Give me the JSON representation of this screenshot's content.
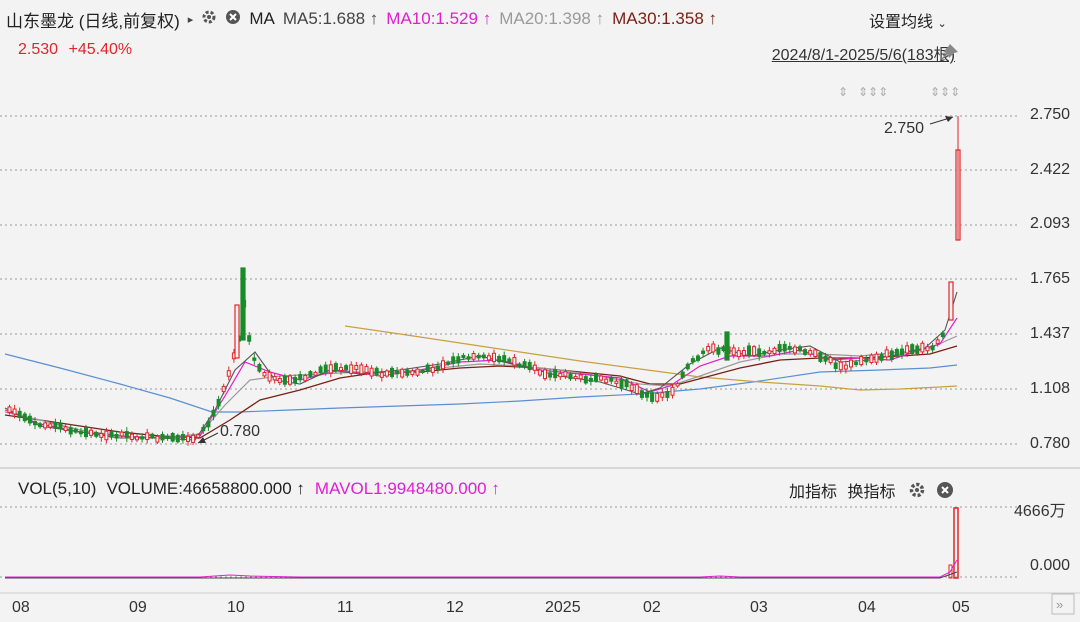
{
  "header": {
    "stock_title": "山东墨龙 (日线,前复权)",
    "play_icon": "▸",
    "ma_label": "MA",
    "ma5": "MA5:1.688",
    "ma10": "MA10:1.529",
    "ma20": "MA20:1.398",
    "ma30": "MA30:1.358",
    "up_arrow": "↑",
    "settings_label": "设置均线",
    "price": "2.530",
    "change": "+45.40%",
    "date_range": "2024/8/1-2025/5/6(183根)"
  },
  "colors": {
    "ma5": "#555555",
    "ma10": "#e020d0",
    "ma20": "#9a9a9a",
    "ma30": "#7a1f14",
    "up": "#e0252b",
    "down": "#1a8a2a",
    "blue_line": "#5b8fd0",
    "gold_line": "#c8a040"
  },
  "price_axis": {
    "ticks": [
      "2.750",
      "2.422",
      "2.093",
      "1.765",
      "1.437",
      "1.108",
      "0.780"
    ],
    "high_label": "2.750",
    "low_label": "0.780"
  },
  "volume": {
    "header_label": "VOL(5,10)",
    "volume_value": "VOLUME:46658800.000",
    "mavol_value": "MAVOL1:9948480.000",
    "add_indicator": "加指标",
    "switch_indicator": "换指标",
    "axis_ticks": [
      "4666万",
      "0.000"
    ]
  },
  "time_axis": {
    "labels": [
      "08",
      "09",
      "10",
      "11",
      "12",
      "2025",
      "02",
      "03",
      "04",
      "05"
    ]
  },
  "chart_data": {
    "type": "candlestick",
    "ylim": [
      0.78,
      2.75
    ],
    "high": 2.75,
    "low": 0.78,
    "last_close": 2.53,
    "x_labels": [
      "08",
      "09",
      "10",
      "11",
      "12",
      "2025",
      "02",
      "03",
      "04",
      "05"
    ],
    "y_ticks": [
      2.75,
      2.422,
      2.093,
      1.765,
      1.437,
      1.108,
      0.78
    ]
  }
}
